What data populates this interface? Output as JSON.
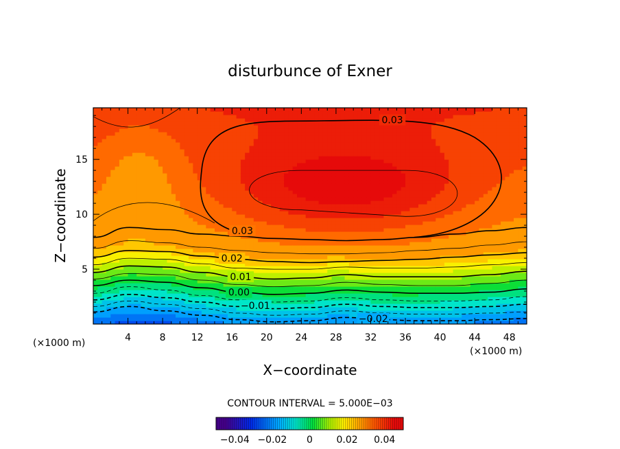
{
  "chart_data": {
    "type": "heatmap",
    "title": "disturbunce of Exner",
    "xlabel": "X−coordinate",
    "ylabel": "Z−coordinate",
    "x_unit": "(×1000 m)",
    "y_unit": "(×1000 m)",
    "xlim": [
      0,
      50
    ],
    "ylim": [
      0,
      19.7
    ],
    "x_ticks": [
      4,
      8,
      12,
      16,
      20,
      24,
      28,
      32,
      36,
      40,
      44,
      48
    ],
    "y_ticks": [
      5,
      10,
      15
    ],
    "x_tick_labels": [
      "4",
      "8",
      "12",
      "16",
      "20",
      "24",
      "28",
      "32",
      "36",
      "40",
      "44",
      "48"
    ],
    "y_tick_labels": [
      "5",
      "10",
      "15"
    ],
    "contour_interval_text": "CONTOUR INTERVAL = 5.000E−03",
    "contour_interval": 0.005,
    "value_range": [
      -0.045,
      0.045
    ],
    "contour_labels": [
      {
        "text": "0.03",
        "x": 34.5,
        "z": 18.6
      },
      {
        "text": "0.03",
        "x": 17.2,
        "z": 8.5
      },
      {
        "text": "0.02",
        "x": 16.0,
        "z": 6.0
      },
      {
        "text": "0.01",
        "x": 17.0,
        "z": 4.3
      },
      {
        "text": "0.00",
        "x": 16.8,
        "z": 2.9
      },
      {
        "text": "−0.01",
        "x": 18.7,
        "z": 1.7
      },
      {
        "text": "−0.02",
        "x": 32.3,
        "z": 0.5
      }
    ],
    "contour_levels": [
      {
        "level": -0.02,
        "style": "dashed-bold",
        "z": [
          1.1,
          1.6,
          1.2,
          0.8,
          0.4,
          0.2,
          0.3,
          0.6,
          0.4,
          0.3,
          0.3,
          0.4,
          0.5
        ]
      },
      {
        "level": -0.015,
        "style": "dashed",
        "z": [
          1.6,
          2.1,
          1.8,
          1.4,
          1.0,
          0.8,
          0.9,
          1.2,
          1.0,
          0.9,
          0.9,
          1.0,
          1.1
        ]
      },
      {
        "level": -0.01,
        "style": "dashed-bold",
        "z": [
          2.2,
          2.7,
          2.4,
          2.0,
          1.6,
          1.4,
          1.5,
          1.8,
          1.6,
          1.5,
          1.5,
          1.6,
          1.8
        ]
      },
      {
        "level": -0.005,
        "style": "dashed",
        "z": [
          2.8,
          3.4,
          3.1,
          2.6,
          2.2,
          2.0,
          2.1,
          2.4,
          2.2,
          2.1,
          2.1,
          2.2,
          2.5
        ]
      },
      {
        "level": 0.0,
        "style": "solid-bold",
        "z": [
          3.5,
          4.0,
          3.8,
          3.3,
          2.9,
          2.7,
          2.8,
          3.1,
          2.9,
          2.8,
          2.8,
          2.9,
          3.2
        ]
      },
      {
        "level": 0.005,
        "style": "solid",
        "z": [
          4.1,
          4.6,
          4.5,
          4.0,
          3.6,
          3.4,
          3.5,
          3.8,
          3.6,
          3.5,
          3.5,
          3.7,
          4.0
        ]
      },
      {
        "level": 0.01,
        "style": "solid-bold",
        "z": [
          4.7,
          5.3,
          5.2,
          4.7,
          4.3,
          4.1,
          4.2,
          4.5,
          4.3,
          4.3,
          4.3,
          4.5,
          4.8
        ]
      },
      {
        "level": 0.015,
        "style": "solid",
        "z": [
          5.4,
          6.0,
          5.9,
          5.5,
          5.1,
          5.0,
          5.0,
          5.2,
          5.1,
          5.1,
          5.2,
          5.4,
          5.6
        ]
      },
      {
        "level": 0.02,
        "style": "solid-bold",
        "z": [
          6.1,
          6.7,
          6.6,
          6.2,
          5.9,
          5.7,
          5.6,
          5.7,
          5.8,
          5.9,
          6.1,
          6.3,
          6.5
        ]
      },
      {
        "level": 0.025,
        "style": "solid",
        "z": [
          6.9,
          7.6,
          7.4,
          7.0,
          6.7,
          6.5,
          6.4,
          6.4,
          6.5,
          6.7,
          6.9,
          7.2,
          7.5
        ]
      },
      {
        "level": 0.03,
        "style": "solid-bold",
        "z": [
          7.9,
          8.8,
          8.6,
          8.2,
          8.0,
          7.8,
          7.7,
          7.6,
          7.7,
          7.9,
          8.2,
          8.5,
          8.8
        ]
      }
    ]
  },
  "colorbar": {
    "tick_labels": [
      "−0.04",
      "−0.02",
      "0",
      "0.02",
      "0.04"
    ],
    "tick_values": [
      -0.04,
      -0.02,
      0,
      0.02,
      0.04
    ],
    "range": [
      -0.05,
      0.05
    ]
  }
}
